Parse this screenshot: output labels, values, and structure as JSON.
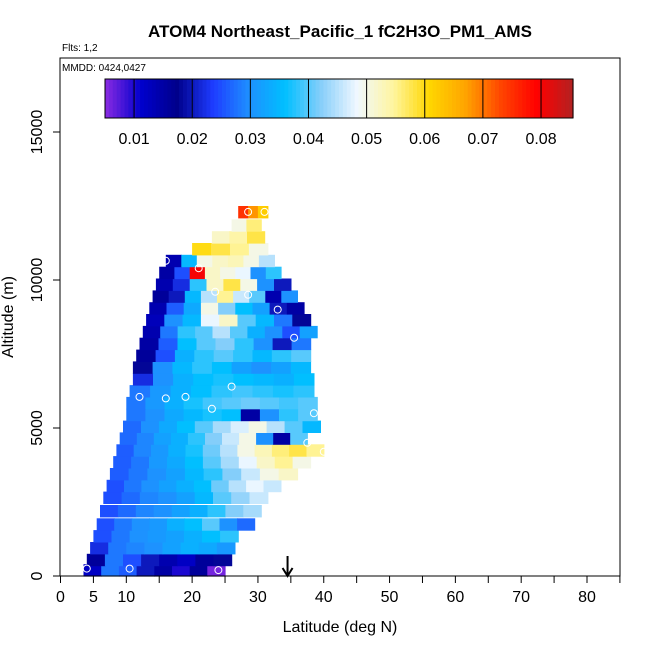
{
  "chart_data": {
    "type": "heatmap",
    "title": "ATOM4 Northeast_Pacific_1 fC2H3O_PM1_AMS",
    "flights_label": "Flts: 1,2",
    "dates_label": "MMDD: 0424,0427",
    "xlabel": "Latitude (deg N)",
    "ylabel": "Altitude (m)",
    "xlim": [
      0,
      85
    ],
    "ylim": [
      0,
      17500
    ],
    "xticks": [
      0,
      5,
      10,
      20,
      30,
      40,
      50,
      60,
      70,
      80
    ],
    "yticks": [
      0,
      5000,
      10000,
      15000
    ],
    "colorbar": {
      "range": [
        0.005,
        0.0855
      ],
      "ticks": [
        0.01,
        0.02,
        0.03,
        0.04,
        0.05,
        0.06,
        0.07,
        0.08
      ],
      "tick_labels": [
        "0.01",
        "0.02",
        "0.03",
        "0.04",
        "0.05",
        "0.06",
        "0.07",
        "0.08"
      ],
      "colors": [
        "#8a2be2",
        "#0000cd",
        "#00008b",
        "#1e3cff",
        "#1e90ff",
        "#00bfff",
        "#87cefa",
        "#f0f8ff",
        "#fff5a0",
        "#ffd700",
        "#ffa500",
        "#ff4500",
        "#ff0000",
        "#b22222"
      ]
    },
    "arrow_latitude": 34.5,
    "rows": [
      {
        "alt": 200,
        "x0": 3.5,
        "x1": 25,
        "vals": [
          0.012,
          0.028,
          0.026,
          0.02,
          0.015,
          0.01,
          0.016,
          0.006
        ]
      },
      {
        "alt": 550,
        "x0": 4,
        "x1": 26,
        "vals": [
          0.016,
          0.028,
          0.025,
          0.02,
          0.014,
          0.012,
          0.016,
          0.018
        ]
      },
      {
        "alt": 950,
        "x0": 4.5,
        "x1": 26.5,
        "vals": [
          0.022,
          0.028,
          0.029,
          0.03,
          0.032,
          0.034,
          0.033,
          0.031
        ]
      },
      {
        "alt": 1350,
        "x0": 5,
        "x1": 27,
        "vals": [
          0.025,
          0.028,
          0.03,
          0.031,
          0.032,
          0.034,
          0.036,
          0.038
        ]
      },
      {
        "alt": 1750,
        "x0": 5.5,
        "x1": 29.5,
        "vals": [
          0.025,
          0.028,
          0.03,
          0.031,
          0.034,
          0.036,
          0.04,
          0.03,
          0.027
        ]
      },
      {
        "alt": 2200,
        "x0": 6,
        "x1": 30.5,
        "vals": [
          0.025,
          0.027,
          0.029,
          0.03,
          0.032,
          0.034,
          0.038,
          0.042,
          0.044
        ]
      },
      {
        "alt": 2650,
        "x0": 6.5,
        "x1": 31.5,
        "vals": [
          0.025,
          0.027,
          0.029,
          0.03,
          0.032,
          0.035,
          0.04,
          0.043,
          0.046
        ]
      },
      {
        "alt": 3050,
        "x0": 7,
        "x1": 33.5,
        "vals": [
          0.025,
          0.028,
          0.03,
          0.032,
          0.034,
          0.036,
          0.041,
          0.045,
          0.048,
          0.046
        ]
      },
      {
        "alt": 3450,
        "x0": 7.5,
        "x1": 36,
        "vals": [
          0.026,
          0.028,
          0.03,
          0.032,
          0.035,
          0.038,
          0.042,
          0.046,
          0.05,
          0.052
        ]
      },
      {
        "alt": 3850,
        "x0": 8,
        "x1": 38,
        "vals": [
          0.026,
          0.028,
          0.031,
          0.033,
          0.036,
          0.04,
          0.044,
          0.048,
          0.052,
          0.055,
          0.05
        ]
      },
      {
        "alt": 4250,
        "x0": 8.5,
        "x1": 40,
        "vals": [
          0.026,
          0.029,
          0.031,
          0.034,
          0.037,
          0.041,
          0.045,
          0.05,
          0.053,
          0.056,
          0.058,
          0.055
        ]
      },
      {
        "alt": 4650,
        "x0": 9,
        "x1": 37.5,
        "vals": [
          0.027,
          0.029,
          0.032,
          0.034,
          0.038,
          0.042,
          0.046,
          0.05,
          0.03,
          0.015,
          0.04
        ]
      },
      {
        "alt": 5050,
        "x0": 9.5,
        "x1": 39.5,
        "vals": [
          0.027,
          0.03,
          0.033,
          0.036,
          0.04,
          0.044,
          0.047,
          0.05,
          0.045,
          0.04,
          0.035
        ]
      },
      {
        "alt": 5450,
        "x0": 10,
        "x1": 39,
        "vals": [
          0.028,
          0.03,
          0.033,
          0.035,
          0.037,
          0.036,
          0.015,
          0.03,
          0.038,
          0.04
        ]
      },
      {
        "alt": 5850,
        "x0": 10,
        "x1": 39,
        "vals": [
          0.028,
          0.031,
          0.034,
          0.037,
          0.039,
          0.04,
          0.041,
          0.04,
          0.039,
          0.04
        ]
      },
      {
        "alt": 6250,
        "x0": 10.5,
        "x1": 38.5,
        "vals": [
          0.028,
          0.031,
          0.034,
          0.036,
          0.038,
          0.039,
          0.038,
          0.037,
          0.038
        ]
      },
      {
        "alt": 6650,
        "x0": 11,
        "x1": 38.5,
        "vals": [
          0.022,
          0.03,
          0.034,
          0.036,
          0.037,
          0.036,
          0.035,
          0.034,
          0.036
        ]
      },
      {
        "alt": 7050,
        "x0": 11,
        "x1": 38,
        "vals": [
          0.018,
          0.03,
          0.035,
          0.038,
          0.036,
          0.032,
          0.03,
          0.032,
          0.035
        ]
      },
      {
        "alt": 7450,
        "x0": 11.5,
        "x1": 38,
        "vals": [
          0.016,
          0.025,
          0.034,
          0.038,
          0.04,
          0.038,
          0.035,
          0.038,
          0.04
        ]
      },
      {
        "alt": 7850,
        "x0": 12,
        "x1": 38,
        "vals": [
          0.015,
          0.026,
          0.036,
          0.04,
          0.042,
          0.038,
          0.03,
          0.02,
          0.028
        ]
      },
      {
        "alt": 8250,
        "x0": 12.5,
        "x1": 39,
        "vals": [
          0.014,
          0.028,
          0.038,
          0.04,
          0.045,
          0.04,
          0.034,
          0.03,
          0.025,
          0.032
        ]
      },
      {
        "alt": 8650,
        "x0": 13,
        "x1": 38,
        "vals": [
          0.013,
          0.03,
          0.035,
          0.048,
          0.052,
          0.04,
          0.035,
          0.028,
          0.018
        ]
      },
      {
        "alt": 9050,
        "x0": 13.5,
        "x1": 37,
        "vals": [
          0.014,
          0.026,
          0.033,
          0.05,
          0.042,
          0.036,
          0.032,
          0.02,
          0.015
        ]
      },
      {
        "alt": 9450,
        "x0": 14,
        "x1": 36,
        "vals": [
          0.016,
          0.02,
          0.035,
          0.045,
          0.055,
          0.046,
          0.04,
          0.014,
          0.03
        ]
      },
      {
        "alt": 9850,
        "x0": 14.5,
        "x1": 35,
        "vals": [
          0.014,
          0.022,
          0.038,
          0.052,
          0.058,
          0.05,
          0.03,
          0.02
        ]
      },
      {
        "alt": 10250,
        "x0": 15,
        "x1": 33.5,
        "vals": [
          0.015,
          0.025,
          0.08,
          0.052,
          0.05,
          0.048,
          0.03,
          0.038
        ]
      },
      {
        "alt": 10650,
        "x0": 16,
        "x1": 32.5,
        "vals": [
          0.014,
          0.035,
          0.05,
          0.052,
          0.053,
          0.05,
          0.045
        ]
      },
      {
        "alt": 11050,
        "x0": 20,
        "x1": 31.5,
        "vals": [
          0.06,
          0.058,
          0.055,
          0.05
        ]
      },
      {
        "alt": 11450,
        "x0": 23,
        "x1": 31,
        "vals": [
          0.052,
          0.054,
          0.058
        ]
      },
      {
        "alt": 11850,
        "x0": 26,
        "x1": 30.5,
        "vals": [
          0.05,
          0.056
        ]
      },
      {
        "alt": 12300,
        "x0": 27,
        "x1": 31.5,
        "vals": [
          0.075,
          0.068,
          0.062
        ]
      }
    ],
    "markers": [
      [
        4,
        250
      ],
      [
        10.5,
        250
      ],
      [
        24,
        200
      ],
      [
        9,
        5900
      ],
      [
        12,
        6050
      ],
      [
        16,
        6000
      ],
      [
        19,
        6050
      ],
      [
        23,
        5650
      ],
      [
        26,
        6400
      ],
      [
        38.5,
        5500
      ],
      [
        37.5,
        4500
      ],
      [
        40,
        4200
      ],
      [
        35.5,
        8050
      ],
      [
        33,
        9000
      ],
      [
        28.5,
        9500
      ],
      [
        23.5,
        9600
      ],
      [
        21,
        10400
      ],
      [
        16,
        10650
      ],
      [
        28.5,
        12300
      ],
      [
        31,
        12300
      ]
    ]
  }
}
